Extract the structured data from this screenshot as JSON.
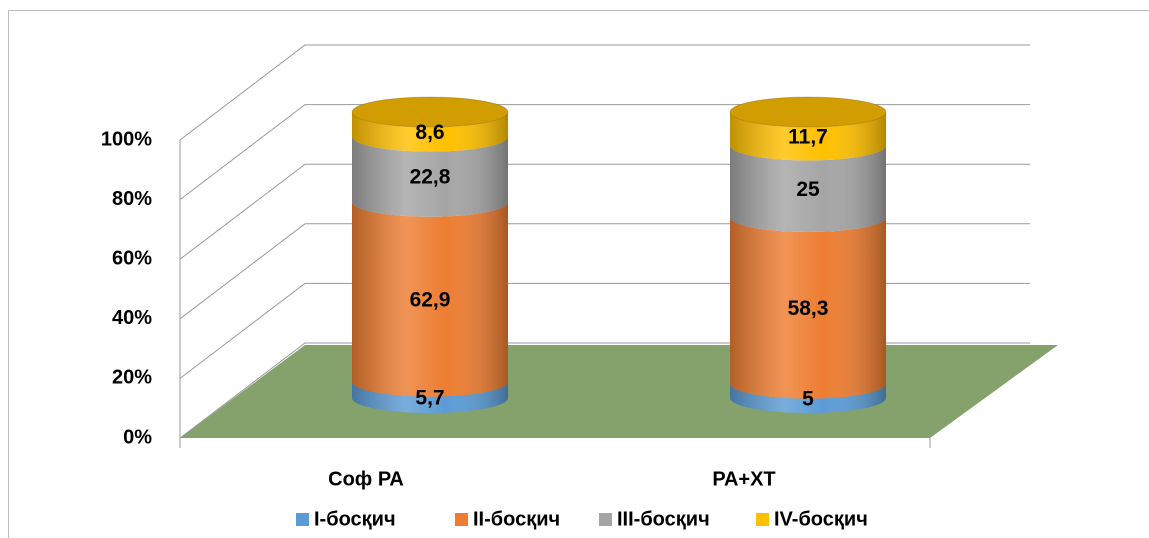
{
  "chart_data": {
    "type": "bar",
    "stacked": true,
    "categories": [
      "Соф РА",
      "РА+ХТ"
    ],
    "series": [
      {
        "name": "I-босқич",
        "color": "#5b9bd5",
        "values": [
          5.7,
          5
        ],
        "value_labels": [
          "5,7",
          "5"
        ]
      },
      {
        "name": "II-босқич",
        "color": "#ed7d31",
        "values": [
          62.9,
          58.3
        ],
        "value_labels": [
          "62,9",
          "58,3"
        ]
      },
      {
        "name": "III-босқич",
        "color": "#a5a5a5",
        "values": [
          22.8,
          25
        ],
        "value_labels": [
          "22,8",
          "25"
        ]
      },
      {
        "name": "IV-босқич",
        "color": "#ffc000",
        "values": [
          8.6,
          11.7
        ],
        "value_labels": [
          "8,6",
          "11,7"
        ]
      }
    ],
    "ylim": [
      0,
      100
    ],
    "yticks": [
      {
        "value": 0,
        "label": "0%"
      },
      {
        "value": 20,
        "label": "20%"
      },
      {
        "value": 40,
        "label": "40%"
      },
      {
        "value": 60,
        "label": "60%"
      },
      {
        "value": 80,
        "label": "80%"
      },
      {
        "value": 100,
        "label": "100%"
      }
    ],
    "grid": true,
    "legend": "bottom"
  }
}
